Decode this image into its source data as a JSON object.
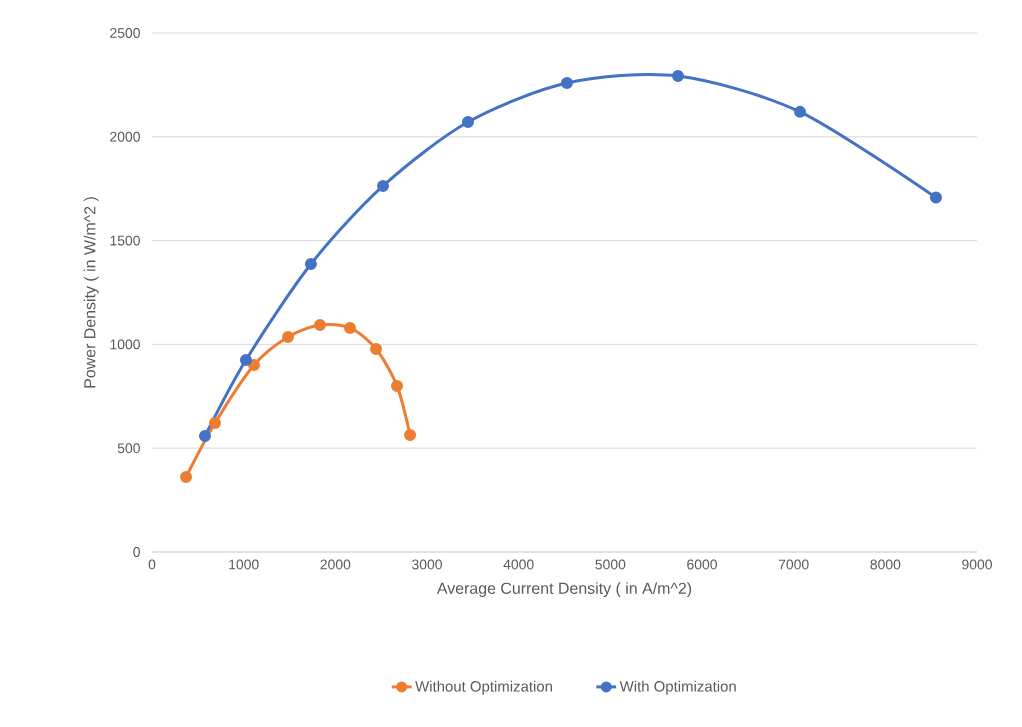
{
  "chart_data": {
    "type": "line",
    "xlabel": "Average Current Density ( in A/m^2)",
    "ylabel": "Power Density ( in W/m^2 )",
    "xlim": [
      0,
      9000
    ],
    "xticks": [
      0,
      1000,
      2000,
      3000,
      4000,
      5000,
      6000,
      7000,
      8000,
      9000
    ],
    "ylim": [
      0,
      2500
    ],
    "yticks": [
      0,
      500,
      1000,
      1500,
      2000,
      2500
    ],
    "grid": "y",
    "legend": "bottom",
    "marker": "circle",
    "line_style": "solid",
    "series": [
      {
        "name": "Without Optimization",
        "color": "#ed7d31",
        "x": [
          371,
          687,
          1113,
          1484,
          1833,
          2160,
          2444,
          2673,
          2815
        ],
        "values": [
          361,
          621,
          901,
          1036,
          1093,
          1079,
          978,
          800,
          564
        ]
      },
      {
        "name": "With Optimization",
        "color": "#4472c4",
        "x": [
          578,
          1025,
          1734,
          2520,
          3447,
          4527,
          5738,
          7069,
          8552
        ],
        "values": [
          559,
          925,
          1387,
          1763,
          2071,
          2259,
          2293,
          2120,
          1707
        ]
      }
    ]
  }
}
